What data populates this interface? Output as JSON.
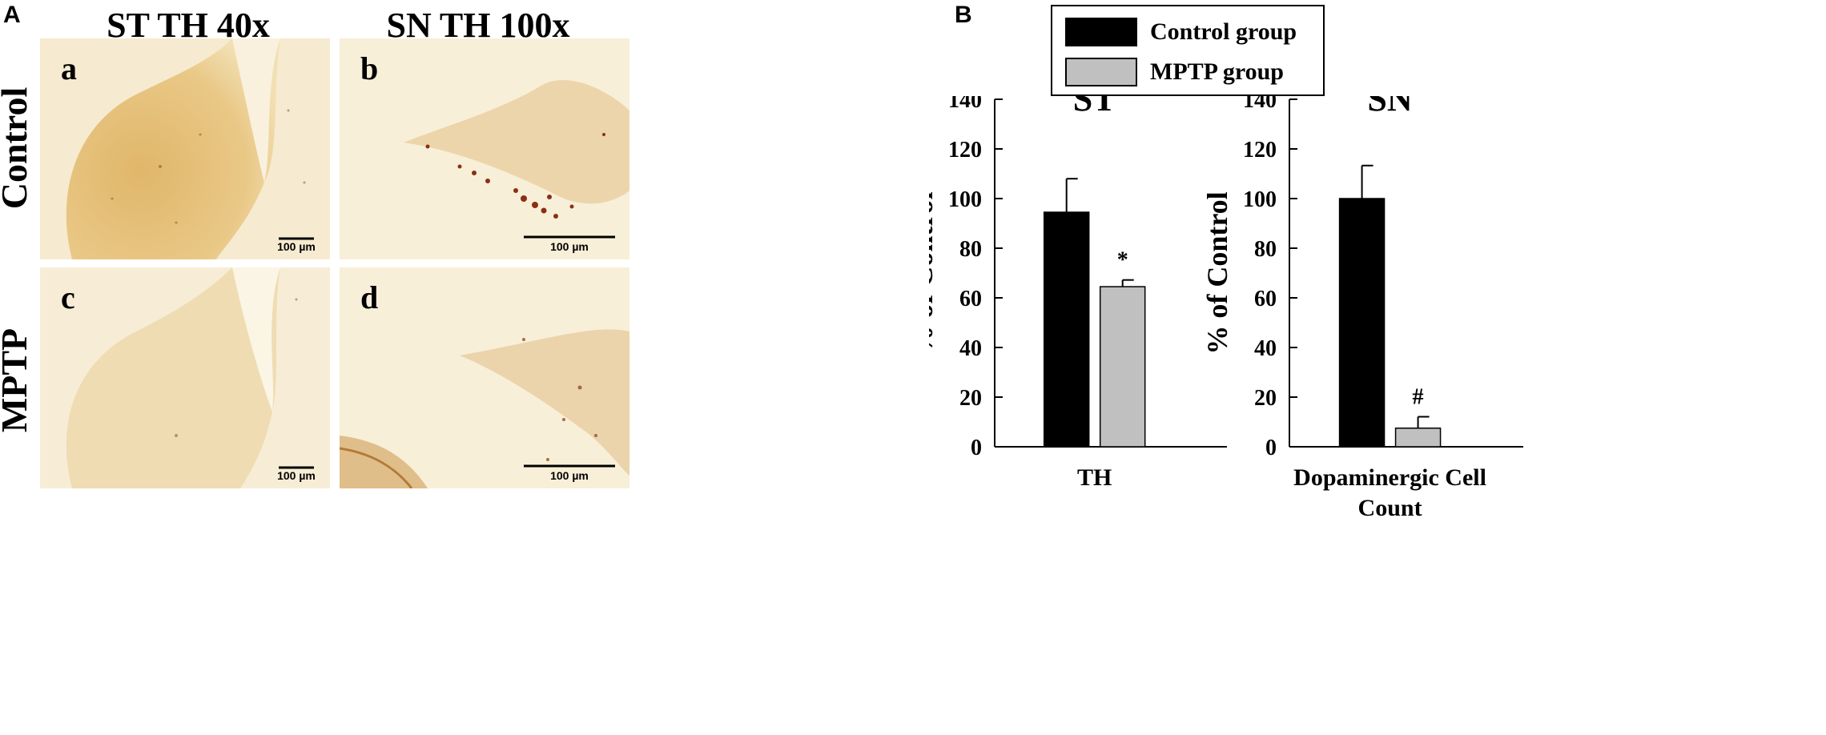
{
  "figure": {
    "panel_a_label": "A",
    "panel_b_label": "B"
  },
  "micrographs": {
    "columns": [
      "ST TH 40x",
      "SN TH 100x"
    ],
    "rows": [
      "Control",
      "MPTP"
    ],
    "images": [
      {
        "tag": "a",
        "scale_bar": "100 µm"
      },
      {
        "tag": "b",
        "scale_bar": "100 µm"
      },
      {
        "tag": "c",
        "scale_bar": "100 µm"
      },
      {
        "tag": "d",
        "scale_bar": "100 µm"
      }
    ]
  },
  "colors": {
    "control": "#000000",
    "mptp": "#c0c0c0",
    "tissue_light": "#f7edd4",
    "tissue_stain": "#d6a85a",
    "cell_dark": "#8b2f14"
  },
  "legend": [
    {
      "name": "Control group",
      "color": "#000000"
    },
    {
      "name": "MPTP group",
      "color": "#c0c0c0"
    }
  ],
  "chart_data": [
    {
      "type": "bar",
      "title": "ST",
      "ylabel": "% of Control",
      "xlabel": "",
      "ylim": [
        0,
        140
      ],
      "yticks": [
        0,
        20,
        40,
        60,
        80,
        100,
        120,
        140
      ],
      "categories": [
        "TH"
      ],
      "series": [
        {
          "name": "Control group",
          "values": [
            94.5
          ],
          "error": [
            13.5
          ]
        },
        {
          "name": "MPTP group",
          "values": [
            64.5
          ],
          "error": [
            2.7
          ]
        }
      ],
      "annotations": [
        "*"
      ]
    },
    {
      "type": "bar",
      "title": "SN",
      "ylabel": "% of Control",
      "xlabel": "",
      "ylim": [
        0,
        140
      ],
      "yticks": [
        0,
        20,
        40,
        60,
        80,
        100,
        120,
        140
      ],
      "categories": [
        "Dopaminergic Cell Count"
      ],
      "category_lines": [
        "Dopaminergic Cell",
        "Count"
      ],
      "series": [
        {
          "name": "Control group",
          "values": [
            100
          ],
          "error": [
            13.3
          ]
        },
        {
          "name": "MPTP group",
          "values": [
            7.5
          ],
          "error": [
            4.6
          ]
        }
      ],
      "annotations": [
        "#"
      ]
    }
  ]
}
